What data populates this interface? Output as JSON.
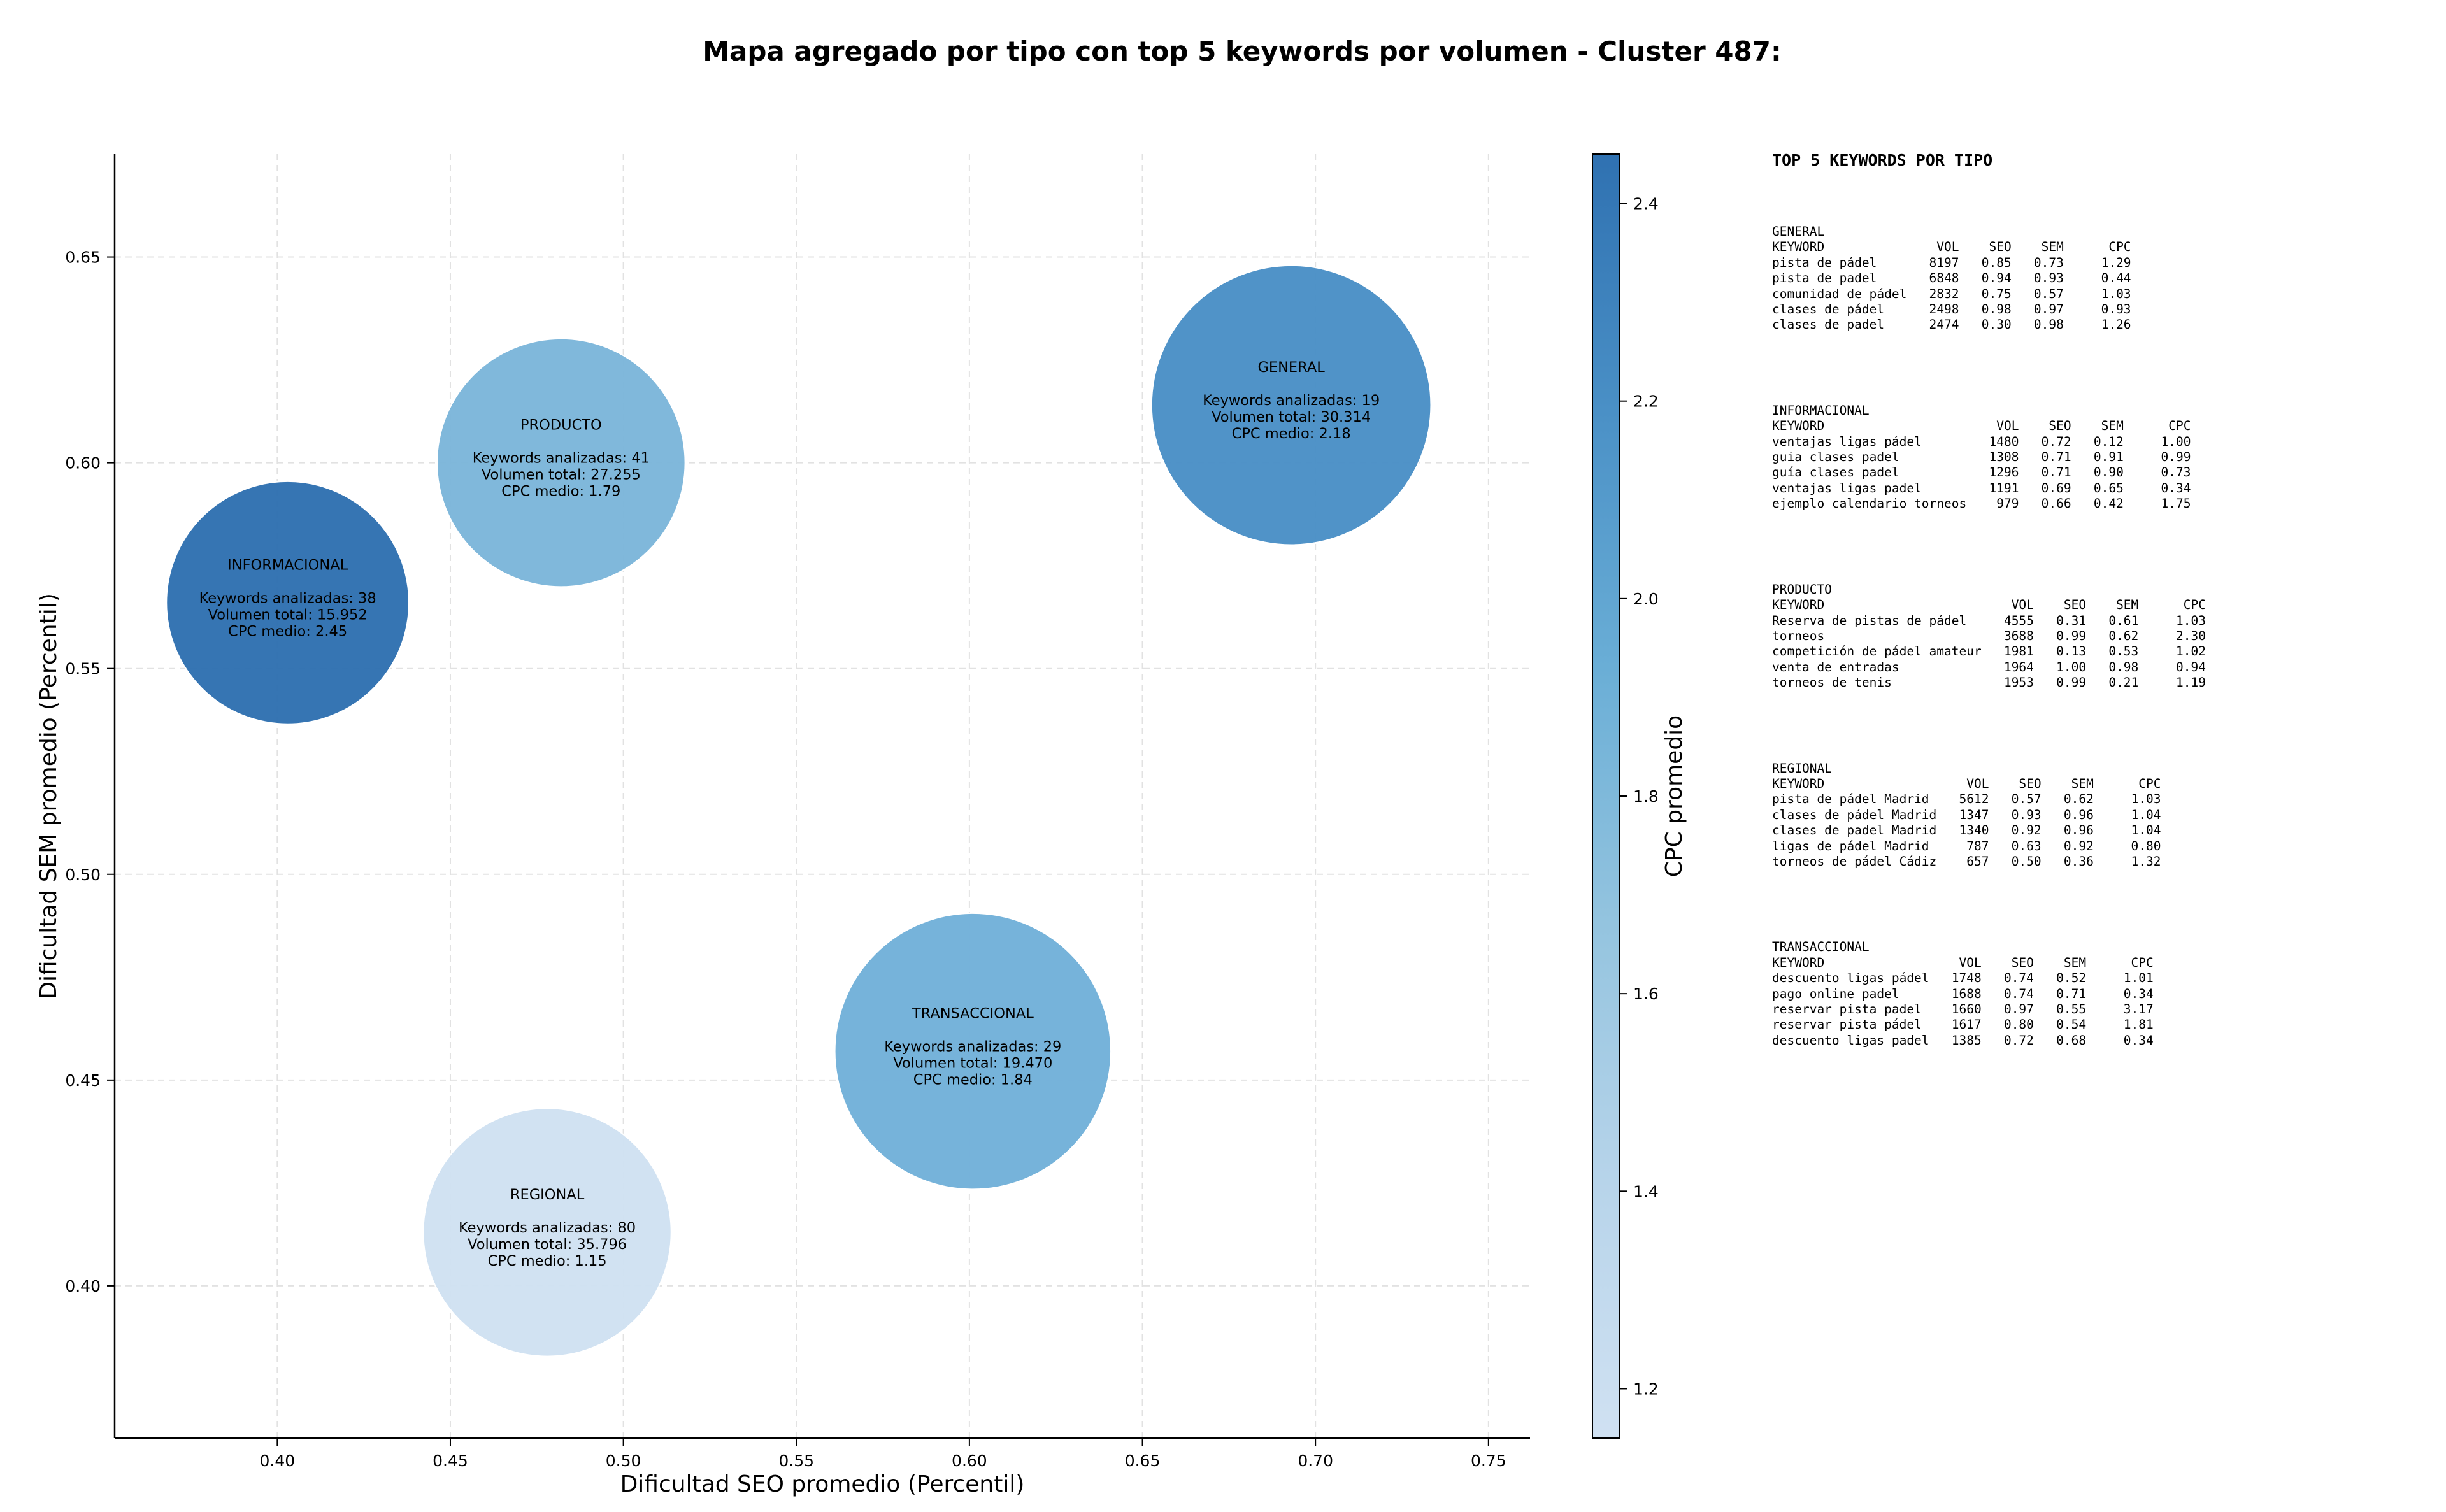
{
  "title": "Mapa agregado por tipo con top 5 keywords por volumen - Cluster 487:",
  "chart_data": {
    "type": "scatter",
    "variant": "bubble",
    "title": "Mapa agregado por tipo con top 5 keywords por volumen - Cluster 487:",
    "xlabel": "Dificultad SEO promedio (Percentil)",
    "ylabel": "Dificultad SEM promedio (Percentil)",
    "xlim": [
      0.353,
      0.762
    ],
    "ylim": [
      0.363,
      0.675
    ],
    "xticks": [
      0.4,
      0.45,
      0.5,
      0.55,
      0.6,
      0.65,
      0.7,
      0.75
    ],
    "yticks": [
      0.4,
      0.45,
      0.5,
      0.55,
      0.6,
      0.65
    ],
    "xtick_labels": [
      "0.40",
      "0.45",
      "0.50",
      "0.55",
      "0.60",
      "0.65",
      "0.70",
      "0.75"
    ],
    "ytick_labels": [
      "0.40",
      "0.45",
      "0.50",
      "0.55",
      "0.60",
      "0.65"
    ],
    "grid": true,
    "colorbar": {
      "label": "CPC promedio",
      "range": [
        1.15,
        2.45
      ],
      "ticks": [
        1.2,
        1.4,
        1.6,
        1.8,
        2.0,
        2.2,
        2.4
      ],
      "tick_labels": [
        "1.2",
        "1.4",
        "1.6",
        "1.8",
        "2.0",
        "2.2",
        "2.4"
      ],
      "colormap": "Blues"
    },
    "bubble_size": "Keywords analizadas",
    "series": [
      {
        "label": "GENERAL",
        "x": 0.693,
        "y": 0.614,
        "keywords": 19,
        "volume": "30.314",
        "cpc": 2.18,
        "text_keywords": "Keywords analizadas: 19",
        "text_volume": "Volumen total: 30.314",
        "text_cpc": "CPC medio: 2.18"
      },
      {
        "label": "PRODUCTO",
        "x": 0.482,
        "y": 0.6,
        "keywords": 41,
        "volume": "27.255",
        "cpc": 1.79,
        "text_keywords": "Keywords analizadas: 41",
        "text_volume": "Volumen total: 27.255",
        "text_cpc": "CPC medio: 1.79"
      },
      {
        "label": "INFORMACIONAL",
        "x": 0.403,
        "y": 0.566,
        "keywords": 38,
        "volume": "15.952",
        "cpc": 2.45,
        "text_keywords": "Keywords analizadas: 38",
        "text_volume": "Volumen total: 15.952",
        "text_cpc": "CPC medio: 2.45"
      },
      {
        "label": "TRANSACCIONAL",
        "x": 0.601,
        "y": 0.457,
        "keywords": 29,
        "volume": "19.470",
        "cpc": 1.84,
        "text_keywords": "Keywords analizadas: 29",
        "text_volume": "Volumen total: 19.470",
        "text_cpc": "CPC medio: 1.84"
      },
      {
        "label": "REGIONAL",
        "x": 0.478,
        "y": 0.413,
        "keywords": 80,
        "volume": "35.796",
        "cpc": 1.15,
        "text_keywords": "Keywords analizadas: 80",
        "text_volume": "Volumen total: 35.796",
        "text_cpc": "CPC medio: 1.15"
      }
    ],
    "colors": {
      "GENERAL": "#4a90c6",
      "PRODUCTO": "#7cb6da",
      "INFORMACIONAL": "#2f71b1",
      "TRANSACCIONAL": "#72b1d9",
      "REGIONAL": "#d0e1f2"
    }
  },
  "keyword_tables": {
    "title": "TOP 5 KEYWORDS POR TIPO",
    "header": [
      "KEYWORD",
      "VOL",
      "SEO",
      "SEM",
      "CPC"
    ],
    "groups": [
      {
        "name": "GENERAL",
        "kw_width": 21,
        "rows": [
          [
            "pista de pádel",
            "8197",
            "0.85",
            "0.73",
            "1.29"
          ],
          [
            "pista de padel",
            "6848",
            "0.94",
            "0.93",
            "0.44"
          ],
          [
            "comunidad de pádel",
            "2832",
            "0.75",
            "0.57",
            "1.03"
          ],
          [
            "clases de pádel",
            "2498",
            "0.98",
            "0.97",
            "0.93"
          ],
          [
            "clases de padel",
            "2474",
            "0.30",
            "0.98",
            "1.26"
          ]
        ]
      },
      {
        "name": "INFORMACIONAL",
        "kw_width": 29,
        "rows": [
          [
            "ventajas ligas pádel",
            "1480",
            "0.72",
            "0.12",
            "1.00"
          ],
          [
            "guia clases padel",
            "1308",
            "0.71",
            "0.91",
            "0.99"
          ],
          [
            "guía clases padel",
            "1296",
            "0.71",
            "0.90",
            "0.73"
          ],
          [
            "ventajas ligas padel",
            "1191",
            "0.69",
            "0.65",
            "0.34"
          ],
          [
            "ejemplo calendario torneos",
            "979",
            "0.66",
            "0.42",
            "1.75"
          ]
        ]
      },
      {
        "name": "PRODUCTO",
        "kw_width": 31,
        "rows": [
          [
            "Reserva de pistas de pádel",
            "4555",
            "0.31",
            "0.61",
            "1.03"
          ],
          [
            "torneos",
            "3688",
            "0.99",
            "0.62",
            "2.30"
          ],
          [
            "competición de pádel amateur",
            "1981",
            "0.13",
            "0.53",
            "1.02"
          ],
          [
            "venta de entradas",
            "1964",
            "1.00",
            "0.98",
            "0.94"
          ],
          [
            "torneos de tenis",
            "1953",
            "0.99",
            "0.21",
            "1.19"
          ]
        ]
      },
      {
        "name": "REGIONAL",
        "kw_width": 25,
        "rows": [
          [
            "pista de pádel Madrid",
            "5612",
            "0.57",
            "0.62",
            "1.03"
          ],
          [
            "clases de pádel Madrid",
            "1347",
            "0.93",
            "0.96",
            "1.04"
          ],
          [
            "clases de padel Madrid",
            "1340",
            "0.92",
            "0.96",
            "1.04"
          ],
          [
            "ligas de pádel Madrid",
            "787",
            "0.63",
            "0.92",
            "0.80"
          ],
          [
            "torneos de pádel Cádiz",
            "657",
            "0.50",
            "0.36",
            "1.32"
          ]
        ]
      },
      {
        "name": "TRANSACCIONAL",
        "kw_width": 24,
        "rows": [
          [
            "descuento ligas pádel",
            "1748",
            "0.74",
            "0.52",
            "1.01"
          ],
          [
            "pago online padel",
            "1688",
            "0.74",
            "0.71",
            "0.34"
          ],
          [
            "reservar pista padel",
            "1660",
            "0.97",
            "0.55",
            "3.17"
          ],
          [
            "reservar pista pádel",
            "1617",
            "0.80",
            "0.54",
            "1.81"
          ],
          [
            "descuento ligas padel",
            "1385",
            "0.72",
            "0.68",
            "0.34"
          ]
        ]
      }
    ]
  }
}
